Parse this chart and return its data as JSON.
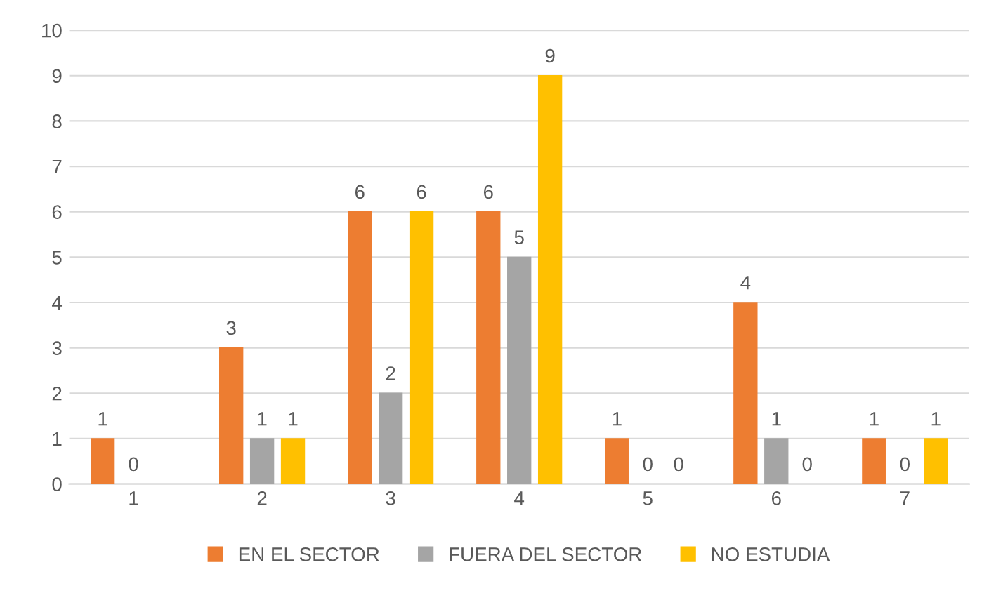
{
  "chart_data": {
    "type": "bar",
    "categories": [
      "1",
      "2",
      "3",
      "4",
      "5",
      "6",
      "7"
    ],
    "series": [
      {
        "name": "EN EL SECTOR",
        "color": "#ed7d31",
        "values": [
          1,
          3,
          6,
          6,
          1,
          4,
          1
        ]
      },
      {
        "name": "FUERA DEL SECTOR",
        "color": "#a5a5a5",
        "values": [
          0,
          1,
          2,
          5,
          0,
          1,
          0
        ]
      },
      {
        "name": "NO ESTUDIA",
        "color": "#ffc000",
        "values": [
          null,
          1,
          6,
          9,
          0,
          0,
          1
        ]
      }
    ],
    "ylim": [
      0,
      10
    ],
    "yticks": [
      0,
      1,
      2,
      3,
      4,
      5,
      6,
      7,
      8,
      9,
      10
    ],
    "grid": "y",
    "legend": "bottom",
    "data_labels": true
  }
}
